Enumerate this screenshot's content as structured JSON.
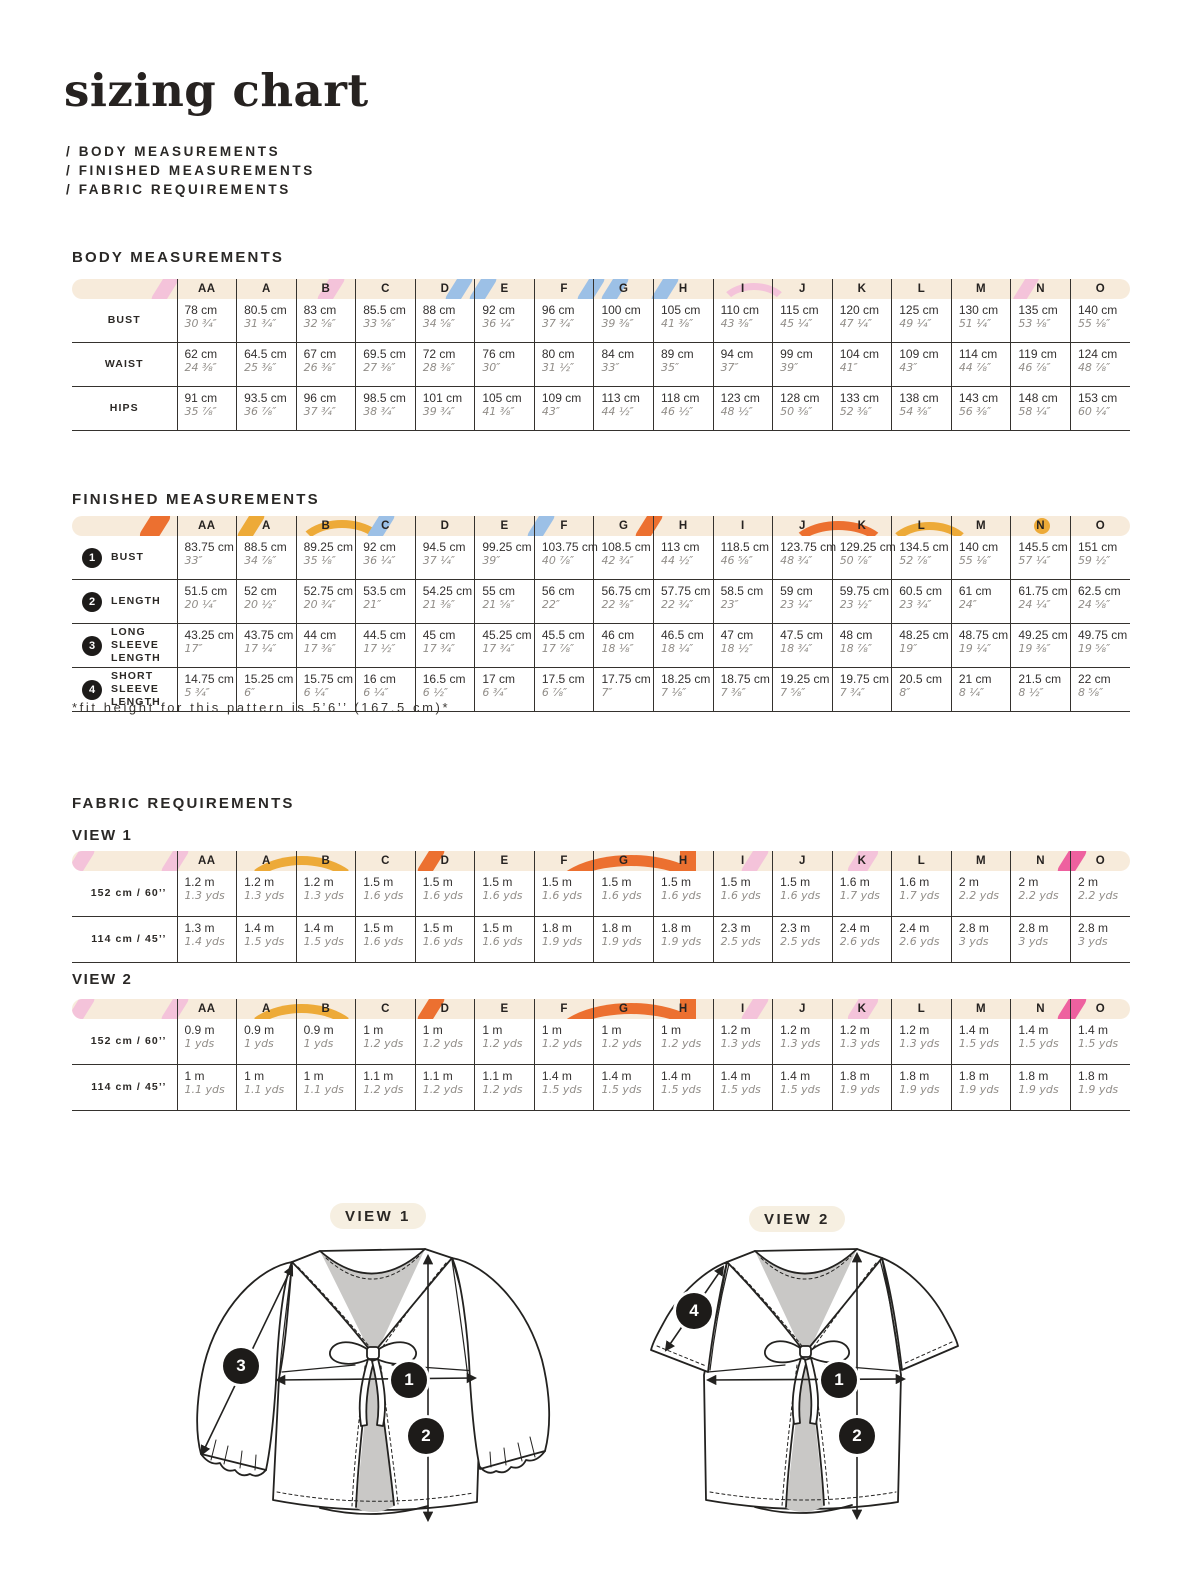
{
  "page": {
    "title": "sizing chart",
    "subtitle_lines": [
      "/ BODY MEASUREMENTS",
      "/ FINISHED MEASUREMENTS",
      "/ FABRIC REQUIREMENTS"
    ],
    "fit_note": "*fit height for this pattern is 5’6’’ (167.5 cm)*"
  },
  "palette": {
    "band_cream": "#f7ebdb",
    "pink": "#f4c3da",
    "rose": "#ee619f",
    "blue": "#9cc0e6",
    "orange": "#ec7030",
    "yellow": "#edaa38",
    "ink": "#232220",
    "muted_gray": "#918d88",
    "callout_black": "#1d1b19"
  },
  "sizes": [
    "AA",
    "A",
    "B",
    "C",
    "D",
    "E",
    "F",
    "G",
    "H",
    "I",
    "J",
    "K",
    "L",
    "M",
    "N",
    "O"
  ],
  "body_measurements": {
    "heading": "BODY MEASUREMENTS",
    "rows": [
      {
        "label": "BUST",
        "top": [
          "78 cm",
          "80.5 cm",
          "83 cm",
          "85.5 cm",
          "88 cm",
          "92 cm",
          "96 cm",
          "100 cm",
          "105 cm",
          "110 cm",
          "115 cm",
          "120 cm",
          "125 cm",
          "130 cm",
          "135 cm",
          "140 cm"
        ],
        "bottom": [
          "30 ¾″",
          "31 ¾″",
          "32 ⅝″",
          "33 ⅝″",
          "34 ⅝″",
          "36 ¼″",
          "37 ¾″",
          "39 ⅜″",
          "41 ⅜″",
          "43 ⅜″",
          "45 ¼″",
          "47 ¼″",
          "49 ¼″",
          "51 ¼″",
          "53 ⅛″",
          "55 ⅛″"
        ]
      },
      {
        "label": "WAIST",
        "top": [
          "62 cm",
          "64.5 cm",
          "67 cm",
          "69.5 cm",
          "72 cm",
          "76 cm",
          "80 cm",
          "84 cm",
          "89 cm",
          "94 cm",
          "99 cm",
          "104 cm",
          "109 cm",
          "114 cm",
          "119 cm",
          "124 cm"
        ],
        "bottom": [
          "24 ⅜″",
          "25 ⅜″",
          "26 ⅜″",
          "27 ⅜″",
          "28 ⅜″",
          "30″",
          "31 ½″",
          "33″",
          "35″",
          "37″",
          "39″",
          "41″",
          "43″",
          "44 ⅞″",
          "46 ⅞″",
          "48 ⅞″"
        ]
      },
      {
        "label": "HIPS",
        "top": [
          "91 cm",
          "93.5 cm",
          "96 cm",
          "98.5 cm",
          "101 cm",
          "105 cm",
          "109 cm",
          "113 cm",
          "118 cm",
          "123 cm",
          "128 cm",
          "133 cm",
          "138 cm",
          "143 cm",
          "148 cm",
          "153 cm"
        ],
        "bottom": [
          "35 ⅞″",
          "36 ⅞″",
          "37 ¾″",
          "38 ¾″",
          "39 ¾″",
          "41 ⅜″",
          "43″",
          "44 ½″",
          "46 ½″",
          "48 ½″",
          "50 ⅜″",
          "52 ⅜″",
          "54 ⅜″",
          "56 ⅜″",
          "58 ¼″",
          "60 ¼″"
        ]
      }
    ]
  },
  "finished_measurements": {
    "heading": "FINISHED MEASUREMENTS",
    "rows": [
      {
        "num": "1",
        "label": "BUST",
        "top": [
          "83.75 cm",
          "88.5 cm",
          "89.25 cm",
          "92 cm",
          "94.5 cm",
          "99.25 cm",
          "103.75 cm",
          "108.5 cm",
          "113 cm",
          "118.5 cm",
          "123.75 cm",
          "129.25 cm",
          "134.5 cm",
          "140 cm",
          "145.5 cm",
          "151 cm"
        ],
        "bottom": [
          "33″",
          "34 ⅞″",
          "35 ⅛″",
          "36 ¼″",
          "37 ¼″",
          "39″",
          "40 ⅞″",
          "42 ¾″",
          "44 ½″",
          "46 ⅝″",
          "48 ¾″",
          "50 ⅞″",
          "52 ⅞″",
          "55 ⅛″",
          "57 ¼″",
          "59 ½″"
        ]
      },
      {
        "num": "2",
        "label": "LENGTH",
        "top": [
          "51.5 cm",
          "52 cm",
          "52.75 cm",
          "53.5 cm",
          "54.25 cm",
          "55 cm",
          "56 cm",
          "56.75 cm",
          "57.75 cm",
          "58.5 cm",
          "59 cm",
          "59.75 cm",
          "60.5 cm",
          "61 cm",
          "61.75 cm",
          "62.5 cm"
        ],
        "bottom": [
          "20 ¼″",
          "20 ½″",
          "20 ¾″",
          "21″",
          "21 ⅜″",
          "21 ⅝″",
          "22″",
          "22 ⅜″",
          "22 ¾″",
          "23″",
          "23 ¼″",
          "23 ½″",
          "23 ¾″",
          "24″",
          "24 ¼″",
          "24 ⅝″"
        ]
      },
      {
        "num": "3",
        "label": "LONG SLEEVE LENGTH",
        "top": [
          "43.25 cm",
          "43.75 cm",
          "44 cm",
          "44.5 cm",
          "45 cm",
          "45.25 cm",
          "45.5 cm",
          "46 cm",
          "46.5 cm",
          "47 cm",
          "47.5 cm",
          "48 cm",
          "48.25 cm",
          "48.75 cm",
          "49.25 cm",
          "49.75 cm"
        ],
        "bottom": [
          "17″",
          "17 ¼″",
          "17 ⅜″",
          "17 ½″",
          "17 ¾″",
          "17 ¾″",
          "17 ⅞″",
          "18 ⅛″",
          "18 ¼″",
          "18 ½″",
          "18 ¾″",
          "18 ⅞″",
          "19″",
          "19 ¼″",
          "19 ⅜″",
          "19 ⅝″"
        ]
      },
      {
        "num": "4",
        "label": "SHORT SLEEVE LENGTH",
        "top": [
          "14.75 cm",
          "15.25 cm",
          "15.75 cm",
          "16 cm",
          "16.5 cm",
          "17 cm",
          "17.5 cm",
          "17.75 cm",
          "18.25 cm",
          "18.75 cm",
          "19.25 cm",
          "19.75 cm",
          "20.5 cm",
          "21 cm",
          "21.5 cm",
          "22 cm"
        ],
        "bottom": [
          "5 ¾″",
          "6″",
          "6 ¼″",
          "6 ¼″",
          "6 ½″",
          "6 ¾″",
          "6 ⅞″",
          "7″",
          "7 ⅛″",
          "7 ⅜″",
          "7 ⅝″",
          "7 ¾″",
          "8″",
          "8 ¼″",
          "8 ½″",
          "8 ⅝″"
        ]
      }
    ]
  },
  "fabric_requirements": {
    "heading": "FABRIC REQUIREMENTS",
    "view1": {
      "heading": "VIEW 1",
      "rows": [
        {
          "label": "152 cm / 60’’",
          "top": [
            "1.2 m",
            "1.2 m",
            "1.2 m",
            "1.5 m",
            "1.5 m",
            "1.5 m",
            "1.5 m",
            "1.5 m",
            "1.5 m",
            "1.5 m",
            "1.5 m",
            "1.6 m",
            "1.6 m",
            "2 m",
            "2 m",
            "2 m"
          ],
          "bottom": [
            "1.3 yds",
            "1.3 yds",
            "1.3 yds",
            "1.6 yds",
            "1.6 yds",
            "1.6 yds",
            "1.6 yds",
            "1.6 yds",
            "1.6 yds",
            "1.6 yds",
            "1.6 yds",
            "1.7 yds",
            "1.7 yds",
            "2.2 yds",
            "2.2 yds",
            "2.2 yds"
          ]
        },
        {
          "label": "114 cm / 45’’",
          "top": [
            "1.3 m",
            "1.4 m",
            "1.4 m",
            "1.5 m",
            "1.5 m",
            "1.5 m",
            "1.8 m",
            "1.8 m",
            "1.8 m",
            "2.3 m",
            "2.3 m",
            "2.4 m",
            "2.4 m",
            "2.8 m",
            "2.8 m",
            "2.8 m"
          ],
          "bottom": [
            "1.4 yds",
            "1.5 yds",
            "1.5 yds",
            "1.6 yds",
            "1.6 yds",
            "1.6 yds",
            "1.9 yds",
            "1.9 yds",
            "1.9 yds",
            "2.5 yds",
            "2.5 yds",
            "2.6 yds",
            "2.6 yds",
            "3 yds",
            "3 yds",
            "3 yds"
          ]
        }
      ]
    },
    "view2": {
      "heading": "VIEW 2",
      "rows": [
        {
          "label": "152 cm / 60’’",
          "top": [
            "0.9 m",
            "0.9 m",
            "0.9 m",
            "1 m",
            "1 m",
            "1 m",
            "1 m",
            "1 m",
            "1 m",
            "1.2 m",
            "1.2 m",
            "1.2 m",
            "1.2 m",
            "1.4 m",
            "1.4 m",
            "1.4 m"
          ],
          "bottom": [
            "1 yds",
            "1 yds",
            "1 yds",
            "1.2 yds",
            "1.2 yds",
            "1.2 yds",
            "1.2 yds",
            "1.2 yds",
            "1.2 yds",
            "1.3 yds",
            "1.3 yds",
            "1.3 yds",
            "1.3 yds",
            "1.5 yds",
            "1.5 yds",
            "1.5 yds"
          ]
        },
        {
          "label": "114 cm / 45’’",
          "top": [
            "1 m",
            "1 m",
            "1 m",
            "1.1 m",
            "1.1 m",
            "1.1 m",
            "1.4 m",
            "1.4 m",
            "1.4 m",
            "1.4 m",
            "1.4 m",
            "1.8 m",
            "1.8 m",
            "1.8 m",
            "1.8 m",
            "1.8 m"
          ],
          "bottom": [
            "1.1 yds",
            "1.1 yds",
            "1.1 yds",
            "1.2 yds",
            "1.2 yds",
            "1.2 yds",
            "1.5 yds",
            "1.5 yds",
            "1.5 yds",
            "1.5 yds",
            "1.5 yds",
            "1.9 yds",
            "1.9 yds",
            "1.9 yds",
            "1.9 yds",
            "1.9 yds"
          ]
        }
      ]
    }
  },
  "diagrams": {
    "view1": {
      "label": "VIEW 1",
      "callouts": [
        "3",
        "1",
        "2"
      ]
    },
    "view2": {
      "label": "VIEW 2",
      "callouts": [
        "4",
        "1",
        "2"
      ]
    }
  }
}
